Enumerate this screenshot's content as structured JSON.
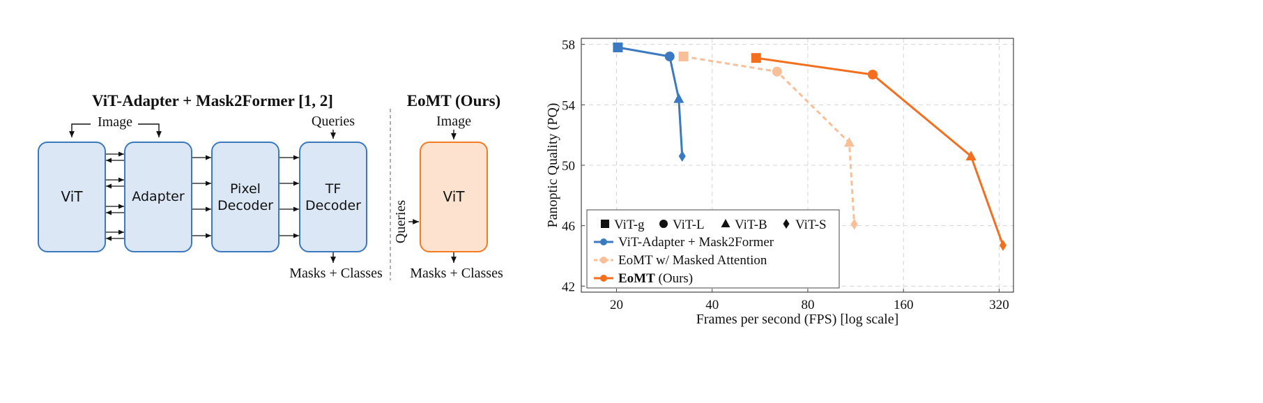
{
  "diagram": {
    "left_title": "ViT-Adapter + Mask2Former [1, 2]",
    "right_title": "EoMT (Ours)",
    "image_label_left": "Image",
    "image_label_right": "Image",
    "queries_top": "Queries",
    "queries_side": "Queries",
    "masks_left": "Masks + Classes",
    "masks_right": "Masks + Classes",
    "blocks": {
      "vit": "ViT",
      "adapter": "Adapter",
      "pixel_line1": "Pixel",
      "pixel_line2": "Decoder",
      "tf_line1": "TF",
      "tf_line2": "Decoder",
      "eomt_vit": "ViT"
    },
    "colors": {
      "block_fill": "#dbe7f5",
      "block_stroke": "#3b78bd",
      "eomt_fill": "#fde3cf",
      "eomt_stroke": "#f47b20"
    }
  },
  "chart_data": {
    "type": "line",
    "xlabel": "Frames per second (FPS) [log scale]",
    "ylabel": "Panoptic Quality (PQ)",
    "xscale": "log",
    "xlim": [
      15.5,
      355
    ],
    "ylim": [
      41.6,
      58.4
    ],
    "xticks": [
      20,
      40,
      80,
      160,
      320
    ],
    "yticks": [
      42,
      46,
      50,
      54,
      58
    ],
    "grid": true,
    "legend_position": "bottom-left",
    "marker_legend": [
      {
        "marker": "square",
        "label": "ViT-g"
      },
      {
        "marker": "circle",
        "label": "ViT-L"
      },
      {
        "marker": "triangle",
        "label": "ViT-B"
      },
      {
        "marker": "diamond",
        "label": "ViT-S"
      }
    ],
    "series": [
      {
        "name": "ViT-Adapter + Mask2Former",
        "color": "#3b7ac0",
        "style": "solid",
        "x": [
          20.2,
          29.4,
          31.4,
          32.2
        ],
        "y": [
          57.8,
          57.2,
          54.4,
          50.6
        ],
        "markers": [
          "square",
          "circle",
          "triangle",
          "diamond"
        ]
      },
      {
        "name": "EoMT w/ Masked Attention",
        "color": "#f8bf98",
        "style": "dashed",
        "x": [
          32.5,
          64,
          108,
          112
        ],
        "y": [
          57.2,
          56.2,
          51.5,
          46.1
        ],
        "markers": [
          "square",
          "circle",
          "triangle",
          "diamond"
        ]
      },
      {
        "name_bold": "EoMT",
        "name_rest": " (Ours)",
        "color": "#f36f1e",
        "style": "solid",
        "x": [
          55,
          128,
          261,
          329
        ],
        "y": [
          57.1,
          56.0,
          50.6,
          44.7
        ],
        "markers": [
          "square",
          "circle",
          "triangle",
          "diamond"
        ]
      }
    ]
  }
}
